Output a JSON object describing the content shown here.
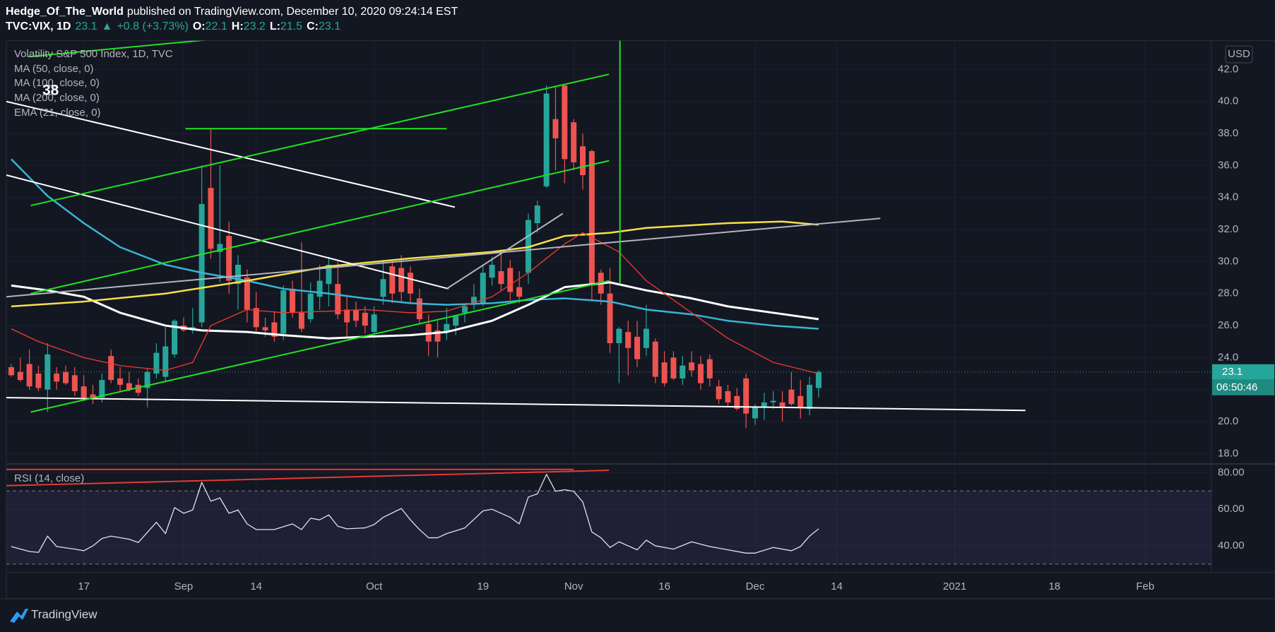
{
  "header": {
    "author": "Hedge_Of_The_World",
    "published": "published on TradingView.com, December 10, 2020 09:24:14 EST",
    "quote": [
      {
        "text": "TVC:VIX, 1D",
        "color": "#ffffff"
      },
      {
        "text": "23.1",
        "color": "#26a69a"
      },
      {
        "text": "▲",
        "color": "#26a69a"
      },
      {
        "text": "+0.8 (+3.73%)",
        "color": "#26a69a"
      },
      {
        "text": "O:",
        "color": "#ffffff"
      },
      {
        "text": "22.1",
        "color": "#26a69a"
      },
      {
        "text": "H:",
        "color": "#ffffff"
      },
      {
        "text": "23.2",
        "color": "#26a69a"
      },
      {
        "text": "L:",
        "color": "#ffffff"
      },
      {
        "text": "21.5",
        "color": "#26a69a"
      },
      {
        "text": "C:",
        "color": "#ffffff"
      },
      {
        "text": "23.1",
        "color": "#26a69a"
      }
    ]
  },
  "chart_data": {
    "type": "candlestick",
    "title": "Volatility S&P 500 Index, 1D, TVC",
    "currency": "USD",
    "annotation": "38",
    "countdown": "06:50:46",
    "up_color": "#26a69a",
    "down_color": "#ef5350",
    "grid": true,
    "open": [
      23.4,
      23.1,
      23.6,
      23.0,
      22.0,
      23.0,
      23.1,
      22.9,
      22.2,
      21.7,
      21.5,
      24.1,
      22.7,
      22.4,
      22.3,
      22.1,
      23.0,
      22.8,
      24.2,
      26.0,
      25.7,
      26.2,
      34.6,
      30.6,
      31.6,
      28.6,
      29.0,
      27.1,
      25.9,
      26.2,
      25.5,
      28.3,
      26.8,
      26.4,
      27.8,
      28.6,
      28.6,
      27.0,
      27.0,
      26.8,
      25.6,
      27.8,
      29.7,
      29.6,
      29.3,
      27.7,
      26.1,
      25.7,
      25.6,
      26.0,
      26.8,
      27.3,
      27.4,
      29.0,
      29.4,
      29.6,
      28.4,
      29.3,
      32.4,
      34.7,
      38.9,
      41.0,
      38.7,
      37.2,
      36.9,
      29.3,
      28.0,
      24.9,
      25.6,
      25.3,
      24.6,
      25.0,
      23.7,
      24.0,
      22.7,
      23.7,
      23.6,
      23.9,
      22.2,
      21.9,
      21.6,
      22.7,
      20.2,
      20.9,
      21.2,
      21.2,
      22.0,
      21.6,
      20.8,
      22.1
    ],
    "high": [
      23.6,
      24.0,
      24.5,
      23.5,
      24.9,
      23.4,
      23.5,
      23.4,
      22.9,
      22.3,
      23.0,
      24.5,
      23.4,
      23.1,
      22.7,
      23.3,
      24.9,
      25.9,
      26.4,
      26.5,
      27.1,
      36.0,
      38.3,
      36.0,
      32.5,
      30.4,
      29.5,
      28.1,
      26.5,
      26.9,
      28.5,
      28.8,
      31.2,
      28.7,
      29.8,
      30.3,
      30.0,
      27.9,
      27.5,
      27.2,
      27.2,
      30.0,
      30.1,
      30.4,
      29.7,
      28.3,
      26.7,
      26.3,
      27.1,
      26.6,
      27.3,
      28.6,
      29.8,
      30.3,
      30.5,
      30.1,
      29.4,
      33.0,
      33.8,
      41.0,
      40.9,
      41.1,
      38.9,
      38.0,
      37.0,
      29.5,
      29.6,
      25.9,
      26.3,
      26.3,
      27.3,
      25.2,
      24.4,
      24.4,
      24.1,
      24.4,
      24.1,
      24.2,
      22.6,
      22.3,
      22.1,
      23.0,
      21.1,
      21.8,
      21.9,
      21.9,
      23.1,
      22.6,
      22.8,
      23.2
    ],
    "low": [
      22.8,
      22.5,
      22.0,
      21.9,
      20.6,
      22.0,
      22.3,
      21.6,
      21.3,
      21.1,
      21.2,
      22.4,
      21.9,
      21.9,
      21.6,
      20.9,
      22.7,
      22.5,
      24.0,
      25.6,
      25.5,
      25.9,
      30.2,
      28.7,
      28.0,
      27.0,
      26.2,
      25.5,
      25.3,
      25.0,
      25.1,
      26.5,
      25.6,
      26.2,
      27.0,
      27.2,
      26.4,
      25.3,
      25.9,
      25.5,
      25.2,
      27.3,
      27.4,
      27.5,
      27.4,
      26.1,
      24.1,
      24.0,
      25.1,
      25.4,
      26.2,
      27.0,
      27.2,
      28.5,
      28.2,
      27.6,
      27.4,
      28.6,
      31.8,
      34.6,
      35.7,
      34.9,
      35.7,
      34.5,
      27.6,
      27.3,
      24.3,
      22.4,
      22.9,
      23.4,
      24.1,
      22.4,
      22.2,
      22.6,
      22.3,
      22.8,
      22.0,
      22.2,
      21.1,
      20.9,
      20.7,
      19.6,
      19.8,
      20.1,
      20.8,
      20.0,
      21.0,
      20.2,
      20.4,
      21.5
    ],
    "close": [
      22.9,
      22.6,
      22.2,
      22.1,
      24.2,
      22.5,
      22.4,
      21.9,
      21.5,
      21.4,
      22.6,
      22.6,
      22.3,
      22.0,
      21.8,
      23.1,
      24.3,
      24.7,
      26.3,
      25.7,
      25.9,
      33.6,
      30.8,
      31.1,
      28.8,
      29.8,
      27.0,
      25.9,
      25.7,
      25.3,
      28.2,
      26.8,
      25.8,
      28.0,
      28.8,
      29.8,
      26.7,
      26.2,
      26.3,
      26.0,
      26.7,
      28.9,
      28.0,
      28.1,
      28.0,
      26.4,
      25.0,
      25.0,
      26.1,
      26.6,
      27.2,
      27.8,
      29.3,
      29.8,
      28.6,
      28.1,
      27.8,
      32.6,
      33.5,
      40.5,
      37.7,
      36.4,
      36.2,
      35.4,
      28.5,
      28.0,
      24.9,
      25.8,
      24.6,
      23.9,
      25.8,
      22.8,
      22.4,
      22.7,
      23.5,
      23.2,
      22.4,
      22.7,
      21.4,
      21.2,
      20.8,
      20.5,
      20.9,
      21.2,
      21.3,
      20.9,
      21.1,
      20.9,
      22.3,
      23.1
    ],
    "xlim": [
      -0.54,
      132.3
    ],
    "xticks": [
      {
        "value": 8,
        "label": "17"
      },
      {
        "value": 19,
        "label": "Sep"
      },
      {
        "value": 27,
        "label": "14"
      },
      {
        "value": 40,
        "label": "Oct"
      },
      {
        "value": 52,
        "label": "19"
      },
      {
        "value": 62,
        "label": "Nov"
      },
      {
        "value": 72,
        "label": "16"
      },
      {
        "value": 82,
        "label": "Dec"
      },
      {
        "value": 91,
        "label": "14"
      },
      {
        "value": 104,
        "label": "2021"
      },
      {
        "value": 115,
        "label": "18"
      },
      {
        "value": 125,
        "label": "Feb"
      }
    ],
    "ylim": [
      17.4,
      43.8
    ],
    "yticks": [
      {
        "value": 18,
        "label": "18.0"
      },
      {
        "value": 20,
        "label": "20.0"
      },
      {
        "value": 22,
        "label": "22.0"
      },
      {
        "value": 24,
        "label": "24.0"
      },
      {
        "value": 26,
        "label": "26.0"
      },
      {
        "value": 28,
        "label": "28.0"
      },
      {
        "value": 30,
        "label": "30.0"
      },
      {
        "value": 32,
        "label": "32.0"
      },
      {
        "value": 34,
        "label": "34.0"
      },
      {
        "value": 36,
        "label": "36.0"
      },
      {
        "value": 38,
        "label": "38.0"
      },
      {
        "value": 40,
        "label": "40.0"
      },
      {
        "value": 42,
        "label": "42.0"
      }
    ],
    "series": [
      {
        "name": "MA (50, close, 0)",
        "color": "#3ab4d4",
        "width": 2.5,
        "x": [
          0,
          4,
          8,
          12,
          17,
          21,
          26,
          30,
          35,
          39,
          44,
          48,
          53,
          57,
          61,
          66,
          70,
          75,
          79,
          84,
          89
        ],
        "values": [
          36.4,
          34.1,
          32.4,
          30.9,
          29.8,
          29.3,
          28.8,
          28.3,
          28.0,
          27.7,
          27.4,
          27.3,
          27.4,
          27.6,
          27.7,
          27.5,
          27.0,
          26.7,
          26.3,
          26.0,
          25.8
        ]
      },
      {
        "name": "MA (100, close, 0)",
        "color": "#ffffff",
        "width": 3,
        "x": [
          0,
          4,
          8,
          12,
          17,
          21,
          26,
          30,
          35,
          39,
          44,
          48,
          53,
          57,
          61,
          66,
          70,
          75,
          79,
          84,
          89
        ],
        "values": [
          28.5,
          28.2,
          27.8,
          26.8,
          26.0,
          25.7,
          25.6,
          25.4,
          25.2,
          25.3,
          25.4,
          25.6,
          26.3,
          27.3,
          28.4,
          28.7,
          28.2,
          27.7,
          27.2,
          26.8,
          26.4
        ]
      },
      {
        "name": "MA (200, close, 0)",
        "color": "#f5e04a",
        "width": 2.5,
        "x": [
          0,
          8,
          17,
          26,
          35,
          44,
          53,
          57,
          61,
          66,
          70,
          79,
          85,
          89
        ],
        "values": [
          27.2,
          27.5,
          28.0,
          28.8,
          29.7,
          30.2,
          30.6,
          30.9,
          31.6,
          31.8,
          32.1,
          32.4,
          32.5,
          32.3
        ]
      },
      {
        "name": "EMA (21, close, 0)",
        "color": "#f23b30",
        "width": 1.3,
        "x": [
          0,
          3,
          8,
          12,
          17,
          20,
          22,
          26,
          30,
          35,
          39,
          44,
          48,
          53,
          57,
          61,
          63,
          67,
          70,
          75,
          79,
          84,
          89
        ],
        "values": [
          25.8,
          25.0,
          24.0,
          23.5,
          23.2,
          23.7,
          26.0,
          27.0,
          26.8,
          26.9,
          27.0,
          26.8,
          26.9,
          27.8,
          29.3,
          31.1,
          31.8,
          30.6,
          28.8,
          26.8,
          25.2,
          23.7,
          23.0
        ]
      }
    ],
    "trendlines": [
      {
        "color": "#ffffff",
        "x": [
          -0.54,
          48.9
        ],
        "values": [
          40.0,
          33.4
        ]
      },
      {
        "color": "#ffffff",
        "x": [
          -0.54,
          48.2
        ],
        "values": [
          35.4,
          28.3
        ]
      },
      {
        "color": "#ffffff",
        "x": [
          -0.54,
          111.8
        ],
        "values": [
          21.5,
          20.7
        ]
      },
      {
        "color": "#b2b5be",
        "x": [
          -0.54,
          95.8
        ],
        "values": [
          27.8,
          32.7
        ]
      },
      {
        "color": "#b2b5be",
        "x": [
          48.0,
          60.8
        ],
        "values": [
          28.3,
          33.0
        ]
      },
      {
        "color": "#22e022",
        "x": [
          2.15,
          65.9
        ],
        "values": [
          33.5,
          41.7
        ]
      },
      {
        "color": "#22e022",
        "x": [
          2.15,
          65.9
        ],
        "values": [
          28.0,
          36.3
        ]
      },
      {
        "color": "#22e022",
        "x": [
          2.15,
          65.9
        ],
        "values": [
          20.6,
          28.8
        ]
      },
      {
        "color": "#22e022",
        "x": [
          1.9,
          22.5
        ],
        "values": [
          42.8,
          43.9
        ]
      },
      {
        "color": "#22e022",
        "x": [
          19.2,
          48.0
        ],
        "values": [
          38.3,
          38.3
        ]
      },
      {
        "color": "#22e022",
        "x": [
          67.1,
          67.1
        ],
        "values": [
          43.8,
          28.6
        ]
      }
    ],
    "rsi": {
      "title": "RSI (14, close)",
      "color": "#e0e3eb",
      "band_color": "#7e57c2",
      "ylim": [
        25.3,
        84.4
      ],
      "bands": [
        30,
        70
      ],
      "yticks": [
        {
          "value": 40,
          "label": "40.00"
        },
        {
          "value": 60,
          "label": "60.00"
        },
        {
          "value": 80,
          "label": "80.00"
        }
      ],
      "x": [
        0,
        2,
        3,
        4,
        5,
        7,
        8,
        9,
        10,
        11,
        13,
        14,
        16,
        17,
        18,
        19,
        20,
        21,
        22,
        23,
        24,
        25,
        26,
        27,
        29,
        31,
        32,
        33,
        34,
        35,
        36,
        37,
        39,
        40,
        41,
        43,
        44,
        45,
        46,
        47,
        48,
        50,
        52,
        53,
        55,
        56,
        57,
        58,
        59,
        60,
        61,
        62,
        63,
        64,
        65,
        66,
        67,
        69,
        70,
        71,
        73,
        75,
        77,
        79,
        81,
        82,
        84,
        86,
        87,
        88,
        89
      ],
      "values": [
        39.6,
        36.9,
        36.4,
        45.3,
        39.6,
        38.2,
        37.3,
        40.0,
        44.0,
        45.3,
        43.6,
        41.8,
        52.9,
        46.7,
        60.9,
        57.8,
        59.6,
        74.7,
        64.4,
        66.2,
        57.8,
        59.6,
        52.0,
        48.9,
        48.9,
        52.0,
        48.9,
        55.1,
        54.2,
        56.9,
        50.7,
        49.3,
        49.8,
        51.6,
        55.6,
        60.4,
        54.2,
        48.9,
        44.4,
        44.4,
        46.7,
        49.8,
        59.1,
        60.0,
        55.6,
        52.0,
        66.7,
        68.4,
        79.1,
        69.8,
        70.7,
        69.8,
        64.0,
        47.6,
        44.4,
        39.1,
        42.2,
        37.8,
        43.1,
        40.0,
        38.2,
        42.2,
        39.6,
        37.8,
        36.0,
        36.0,
        39.1,
        37.3,
        39.6,
        45.3,
        49.3
      ],
      "trendlines": [
        {
          "color": "#e53935",
          "x": [
            -0.54,
            65.9
          ],
          "values": [
            72.9,
            81.3
          ]
        },
        {
          "color": "#e53935",
          "x": [
            -0.54,
            62.0
          ],
          "values": [
            81.8,
            81.8
          ]
        }
      ]
    }
  },
  "footer": {
    "brand": "TradingView"
  }
}
